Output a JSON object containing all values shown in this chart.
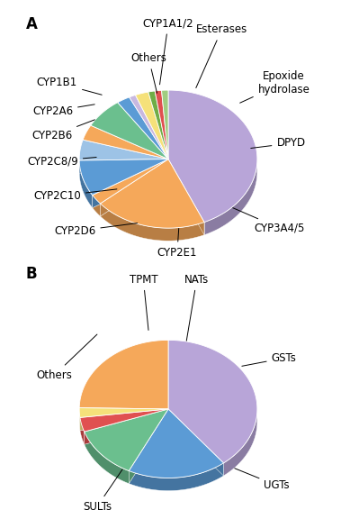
{
  "chart_A": {
    "labels_order": [
      "CYP3A4/5",
      "CYP2C10",
      "CYP2D6",
      "CYP2E1",
      "CYP2C8/9",
      "CYP1A1/2",
      "Others",
      "Esterases",
      "Epoxide_hydrolase",
      "DPYD",
      "CYP2B6",
      "CYP2A6",
      "CYP1B1"
    ],
    "sizes": [
      36,
      17,
      2,
      7,
      4,
      3,
      6,
      2,
      1,
      2,
      1,
      1,
      1
    ],
    "colors": [
      "#b8a5d8",
      "#f5a85a",
      "#f5a85a",
      "#5b9bd5",
      "#9dc3e6",
      "#f5a85a",
      "#6bbf8e",
      "#5b9bd5",
      "#c8b8e0",
      "#f5e17a",
      "#70ad47",
      "#e05050",
      "#a0cc80"
    ]
  },
  "chart_B": {
    "labels_order": [
      "UGTs",
      "GSTs",
      "NATs",
      "TPMT",
      "Others",
      "SULTs"
    ],
    "sizes": [
      35,
      16,
      11,
      3,
      2,
      22
    ],
    "colors": [
      "#b8a5d8",
      "#5b9bd5",
      "#6bbf8e",
      "#e05050",
      "#f5e17a",
      "#f5a85a"
    ]
  },
  "bg_color": "#ffffff",
  "font_size": 8.5,
  "label_font": "DejaVu Sans"
}
